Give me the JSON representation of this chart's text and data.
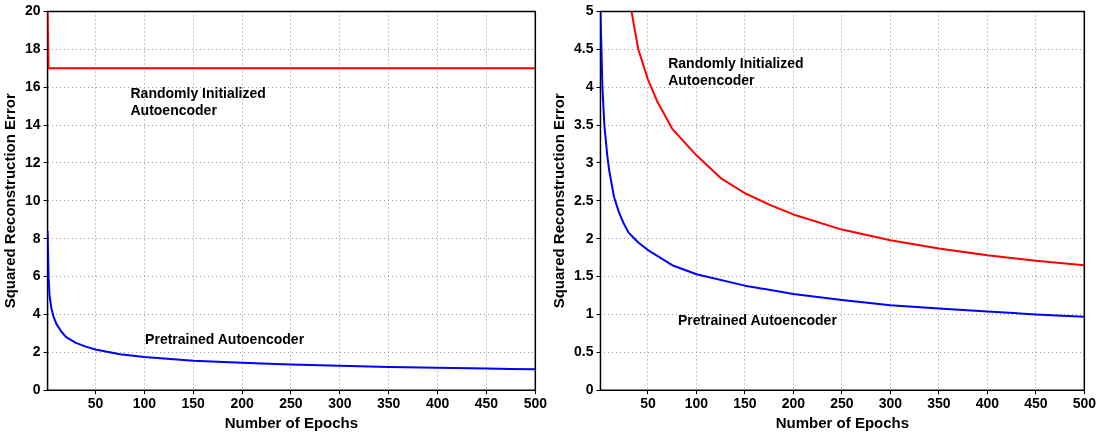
{
  "chart_data": [
    {
      "type": "line",
      "xlabel": "Number of Epochs",
      "ylabel": "Squared Reconstruction Error",
      "xlim": [
        1,
        500
      ],
      "ylim": [
        0,
        20
      ],
      "xticks": [
        50,
        100,
        150,
        200,
        250,
        300,
        350,
        400,
        450,
        500
      ],
      "yticks": [
        0,
        2,
        4,
        6,
        8,
        10,
        12,
        14,
        16,
        18,
        20
      ],
      "grid": true,
      "line_style": "solid",
      "series": [
        {
          "name": "Randomly Initialized Autoencoder",
          "color": "#ff0000",
          "x": [
            1,
            2,
            500
          ],
          "values": [
            20,
            17,
            17
          ]
        },
        {
          "name": "Pretrained Autoencoder",
          "color": "#0000ff",
          "x": [
            1,
            2,
            3,
            5,
            7,
            10,
            15,
            20,
            30,
            40,
            50,
            75,
            100,
            150,
            200,
            250,
            300,
            350,
            400,
            450,
            500
          ],
          "values": [
            8.4,
            6.0,
            5.0,
            4.3,
            3.9,
            3.5,
            3.1,
            2.8,
            2.5,
            2.3,
            2.15,
            1.9,
            1.75,
            1.55,
            1.45,
            1.36,
            1.29,
            1.23,
            1.18,
            1.14,
            1.1
          ]
        }
      ]
    },
    {
      "type": "line",
      "xlabel": "Number of Epochs",
      "ylabel": "Squared Reconstruction Error",
      "xlim": [
        1,
        500
      ],
      "ylim": [
        0,
        5
      ],
      "xticks": [
        50,
        100,
        150,
        200,
        250,
        300,
        350,
        400,
        450,
        500
      ],
      "yticks": [
        0,
        0.5,
        1,
        1.5,
        2,
        2.5,
        3,
        3.5,
        4,
        4.5,
        5
      ],
      "grid": true,
      "line_style": "solid",
      "series": [
        {
          "name": "Randomly Initialized Autoencoder",
          "color": "#ff0000",
          "x": [
            33,
            40,
            50,
            60,
            75,
            100,
            125,
            150,
            175,
            200,
            250,
            300,
            350,
            400,
            450,
            500
          ],
          "values": [
            5,
            4.5,
            4.1,
            3.8,
            3.45,
            3.1,
            2.8,
            2.6,
            2.45,
            2.32,
            2.12,
            1.98,
            1.87,
            1.78,
            1.71,
            1.65
          ]
        },
        {
          "name": "Pretrained Autoencoder",
          "color": "#0000ff",
          "x": [
            1,
            3,
            5,
            8,
            10,
            15,
            20,
            25,
            30,
            40,
            50,
            75,
            100,
            150,
            200,
            250,
            300,
            350,
            400,
            450,
            500
          ],
          "values": [
            5,
            4.0,
            3.5,
            3.1,
            2.9,
            2.55,
            2.35,
            2.2,
            2.08,
            1.95,
            1.85,
            1.65,
            1.53,
            1.38,
            1.27,
            1.19,
            1.12,
            1.08,
            1.04,
            1.0,
            0.97
          ]
        }
      ]
    }
  ]
}
